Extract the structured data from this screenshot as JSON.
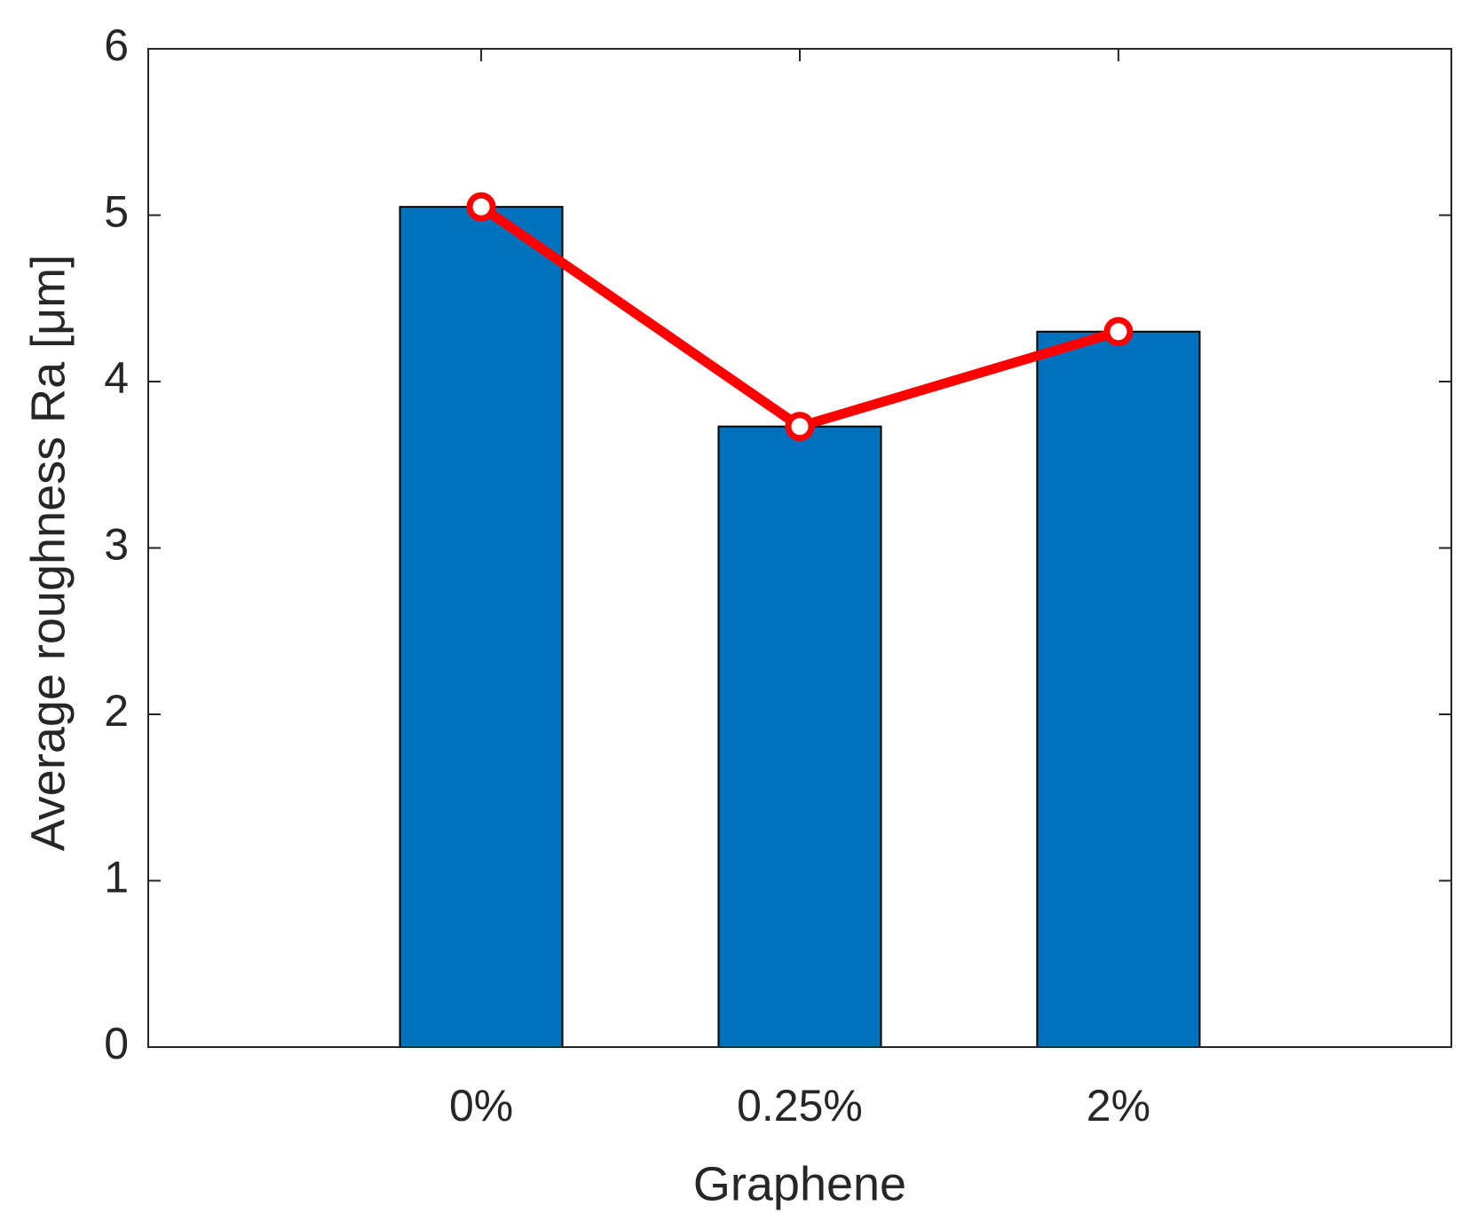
{
  "chart_data": {
    "type": "bar",
    "x_label": "Graphene",
    "y_label": "Average roughness Ra [μm]",
    "categories": [
      "0%",
      "0.25%",
      "2%"
    ],
    "series": [
      {
        "type": "bar",
        "color": "#0072bd",
        "values": [
          5.05,
          3.73,
          4.3
        ]
      },
      {
        "type": "line",
        "color": "#ff0000",
        "values": [
          5.05,
          3.73,
          4.3
        ]
      }
    ],
    "ylim": [
      0,
      6
    ],
    "yticks": [
      0,
      1,
      2,
      3,
      4,
      5,
      6
    ],
    "grid": false
  }
}
